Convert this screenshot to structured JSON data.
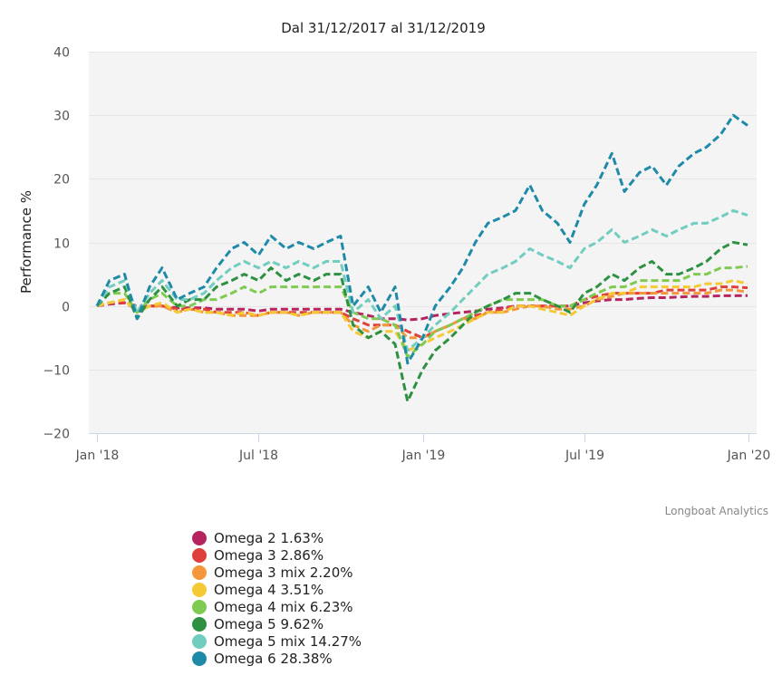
{
  "chart_data": {
    "type": "line",
    "title": "Dal 31/12/2017 al 31/12/2019",
    "xlabel": "",
    "ylabel": "Performance %",
    "ylim": [
      -20,
      40
    ],
    "yticks": [
      -20,
      -10,
      0,
      10,
      20,
      30,
      40
    ],
    "ytick_labels": [
      "−20",
      "−10",
      "0",
      "10",
      "20",
      "30",
      "40"
    ],
    "xlim": [
      "2018-01-01",
      "2019-12-31"
    ],
    "xticks": [
      "2018-01-01",
      "2018-07-01",
      "2019-01-01",
      "2019-07-01",
      "2020-01-01"
    ],
    "xtick_labels": [
      "Jan '18",
      "Jul '18",
      "Jan '19",
      "Jul '19",
      "Jan '20"
    ],
    "grid": true,
    "line_style": "dashed",
    "legend_position": "bottom-left",
    "credit": "Longboat Analytics",
    "x": [
      "2018-01-01",
      "2018-01-15",
      "2018-02-01",
      "2018-02-15",
      "2018-03-01",
      "2018-03-15",
      "2018-04-01",
      "2018-04-15",
      "2018-05-01",
      "2018-05-15",
      "2018-06-01",
      "2018-06-15",
      "2018-07-01",
      "2018-07-15",
      "2018-08-01",
      "2018-08-15",
      "2018-09-01",
      "2018-09-15",
      "2018-10-01",
      "2018-10-15",
      "2018-11-01",
      "2018-11-15",
      "2018-12-01",
      "2018-12-15",
      "2019-01-01",
      "2019-01-15",
      "2019-02-01",
      "2019-02-15",
      "2019-03-01",
      "2019-03-15",
      "2019-04-01",
      "2019-04-15",
      "2019-05-01",
      "2019-05-15",
      "2019-06-01",
      "2019-06-15",
      "2019-07-01",
      "2019-07-15",
      "2019-08-01",
      "2019-08-15",
      "2019-09-01",
      "2019-09-15",
      "2019-10-01",
      "2019-10-15",
      "2019-11-01",
      "2019-11-15",
      "2019-12-01",
      "2019-12-15",
      "2019-12-31"
    ],
    "series": [
      {
        "name": "Omega 2",
        "legend": "Omega 2 1.63%",
        "color": "#b5245f",
        "values": [
          0,
          0.3,
          0.5,
          0,
          0,
          0,
          -0.3,
          -0.3,
          -0.3,
          -0.5,
          -0.5,
          -0.5,
          -0.8,
          -0.5,
          -0.5,
          -0.5,
          -0.5,
          -0.5,
          -0.5,
          -1,
          -1.5,
          -2,
          -2,
          -2.2,
          -2,
          -1.5,
          -1.2,
          -1,
          -0.8,
          -0.5,
          -0.3,
          0,
          0,
          0,
          0,
          0,
          0.5,
          0.8,
          1,
          1,
          1.2,
          1.3,
          1.3,
          1.4,
          1.5,
          1.5,
          1.6,
          1.6,
          1.63
        ]
      },
      {
        "name": "Omega 3",
        "legend": "Omega 3 2.86%",
        "color": "#e0403a",
        "values": [
          0,
          0.5,
          0.5,
          -0.5,
          0,
          0,
          -0.5,
          -0.5,
          -0.5,
          -1,
          -1,
          -1,
          -1.5,
          -1,
          -1,
          -1,
          -1,
          -1,
          -1,
          -2,
          -3,
          -3,
          -3,
          -4,
          -5,
          -4,
          -3,
          -2,
          -1.5,
          -1,
          -0.5,
          0,
          0,
          0,
          0,
          0,
          1,
          1.5,
          2,
          2,
          2,
          2,
          2.5,
          2.5,
          2.5,
          2.5,
          3,
          3,
          2.86
        ]
      },
      {
        "name": "Omega 3 mix",
        "legend": "Omega 3 mix 2.20%",
        "color": "#f4973a",
        "values": [
          0,
          0.5,
          1,
          -1,
          0,
          0,
          -1,
          -0.5,
          -1,
          -1,
          -1.5,
          -1.5,
          -1.5,
          -1,
          -1,
          -1.5,
          -1,
          -1,
          -1,
          -3,
          -4,
          -3,
          -3,
          -5,
          -5,
          -4,
          -3,
          -2,
          -2,
          -1,
          -1,
          -0.5,
          0,
          0,
          -0.5,
          -0.5,
          0,
          1,
          1.5,
          2,
          2,
          2,
          2,
          2,
          2,
          2,
          2.5,
          2.5,
          2.2
        ]
      },
      {
        "name": "Omega 4",
        "legend": "Omega 4 3.51%",
        "color": "#f5c934",
        "values": [
          0,
          0.5,
          1,
          -1,
          0,
          0.5,
          -1,
          -0.5,
          -1,
          -1,
          -1.5,
          -1,
          -1.5,
          -1,
          -1,
          -1.5,
          -1,
          -1,
          -1,
          -4,
          -5,
          -4,
          -4,
          -7,
          -6,
          -5,
          -4,
          -3,
          -2,
          -1,
          -1,
          0,
          0,
          -0.5,
          -1,
          -1.5,
          0,
          1,
          2,
          2,
          3,
          3,
          3,
          3,
          3,
          3.5,
          3.5,
          4,
          3.51
        ]
      },
      {
        "name": "Omega 4 mix",
        "legend": "Omega 4 mix 6.23%",
        "color": "#7fcb52",
        "values": [
          0,
          2,
          2,
          -1,
          1,
          2,
          0,
          0,
          1,
          1,
          2,
          3,
          2,
          3,
          3,
          3,
          3,
          3,
          3,
          -1,
          -2,
          -2,
          -3,
          -8,
          -6,
          -4,
          -3,
          -2,
          -1,
          0,
          1,
          1,
          1,
          1,
          0,
          0,
          1,
          2,
          3,
          3,
          4,
          4,
          4,
          4,
          5,
          5,
          6,
          6,
          6.23
        ]
      },
      {
        "name": "Omega 5",
        "legend": "Omega 5 9.62%",
        "color": "#2e9142",
        "values": [
          0,
          2,
          3,
          -2,
          1,
          3,
          0,
          1,
          1,
          3,
          4,
          5,
          4,
          6,
          4,
          5,
          4,
          5,
          5,
          -3,
          -5,
          -4,
          -6,
          -15,
          -10,
          -7,
          -5,
          -3,
          -1,
          0,
          1,
          2,
          2,
          1,
          0,
          -1,
          2,
          3,
          5,
          4,
          6,
          7,
          5,
          5,
          6,
          7,
          9,
          10,
          9.62
        ]
      },
      {
        "name": "Omega 5 mix",
        "legend": "Omega 5 mix 14.27%",
        "color": "#70cdbf",
        "values": [
          0,
          3,
          4,
          -1,
          2,
          4,
          1,
          1,
          2,
          4,
          6,
          7,
          6,
          7,
          6,
          7,
          6,
          7,
          7,
          -1,
          1,
          -2,
          0,
          -7,
          -5,
          -3,
          -1,
          1,
          3,
          5,
          6,
          7,
          9,
          8,
          7,
          6,
          9,
          10,
          12,
          10,
          11,
          12,
          11,
          12,
          13,
          13,
          14,
          15,
          14.27
        ]
      },
      {
        "name": "Omega 6",
        "legend": "Omega 6 28.38%",
        "color": "#1f8aa8",
        "values": [
          0,
          4,
          5,
          -2,
          3,
          6,
          1,
          2,
          3,
          6,
          9,
          10,
          8,
          11,
          9,
          10,
          9,
          10,
          11,
          0,
          3,
          -1,
          3,
          -9,
          -5,
          0,
          3,
          6,
          10,
          13,
          14,
          15,
          19,
          15,
          13,
          10,
          16,
          19,
          24,
          18,
          21,
          22,
          19,
          22,
          24,
          25,
          27,
          30,
          28.38
        ]
      }
    ]
  }
}
